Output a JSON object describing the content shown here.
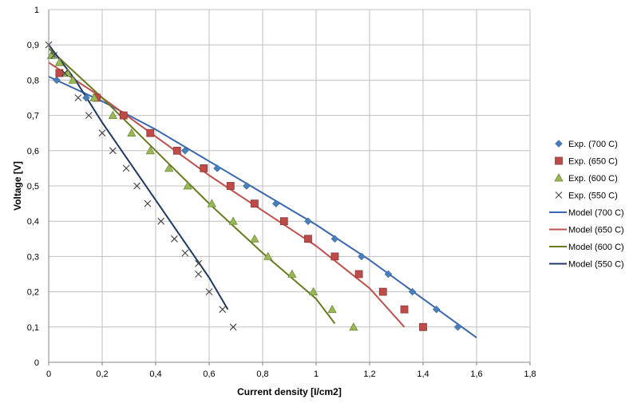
{
  "chart_data": {
    "type": "scatter",
    "title": "",
    "xlabel": "Current density [I/cm2]",
    "ylabel": "Voltage [V]",
    "xlim": [
      0,
      1.8
    ],
    "ylim": [
      0,
      1
    ],
    "x_ticks": [
      "0",
      "0,2",
      "0,4",
      "0,6",
      "0,8",
      "1",
      "1,2",
      "1,4",
      "1,6",
      "1,8"
    ],
    "y_ticks": [
      "0",
      "0,1",
      "0,2",
      "0,3",
      "0,4",
      "0,5",
      "0,6",
      "0,7",
      "0,8",
      "0,9",
      "1"
    ],
    "grid": true,
    "legend_position": "right",
    "series": [
      {
        "name": "Exp. (700 C)",
        "kind": "marker",
        "marker": "diamond",
        "color": "#4a7ebb",
        "points": [
          [
            0.03,
            0.8
          ],
          [
            0.14,
            0.75
          ],
          [
            0.38,
            0.65
          ],
          [
            0.51,
            0.6
          ],
          [
            0.63,
            0.55
          ],
          [
            0.74,
            0.5
          ],
          [
            0.85,
            0.45
          ],
          [
            0.97,
            0.4
          ],
          [
            1.07,
            0.35
          ],
          [
            1.17,
            0.3
          ],
          [
            1.27,
            0.25
          ],
          [
            1.36,
            0.2
          ],
          [
            1.45,
            0.15
          ],
          [
            1.53,
            0.1
          ]
        ]
      },
      {
        "name": "Exp. (650 C)",
        "kind": "marker",
        "marker": "square",
        "color": "#be4b48",
        "points": [
          [
            0.04,
            0.82
          ],
          [
            0.18,
            0.75
          ],
          [
            0.28,
            0.7
          ],
          [
            0.38,
            0.65
          ],
          [
            0.48,
            0.6
          ],
          [
            0.58,
            0.55
          ],
          [
            0.68,
            0.5
          ],
          [
            0.77,
            0.45
          ],
          [
            0.88,
            0.4
          ],
          [
            0.97,
            0.35
          ],
          [
            1.07,
            0.3
          ],
          [
            1.16,
            0.25
          ],
          [
            1.25,
            0.2
          ],
          [
            1.33,
            0.15
          ],
          [
            1.4,
            0.1
          ]
        ]
      },
      {
        "name": "Exp. (600 C)",
        "kind": "marker",
        "marker": "triangle",
        "color": "#98b954",
        "points": [
          [
            0.01,
            0.87
          ],
          [
            0.04,
            0.85
          ],
          [
            0.07,
            0.82
          ],
          [
            0.09,
            0.8
          ],
          [
            0.17,
            0.75
          ],
          [
            0.24,
            0.7
          ],
          [
            0.31,
            0.65
          ],
          [
            0.38,
            0.6
          ],
          [
            0.45,
            0.55
          ],
          [
            0.52,
            0.5
          ],
          [
            0.61,
            0.45
          ],
          [
            0.69,
            0.4
          ],
          [
            0.77,
            0.35
          ],
          [
            0.82,
            0.3
          ],
          [
            0.91,
            0.25
          ],
          [
            0.99,
            0.2
          ],
          [
            1.06,
            0.15
          ],
          [
            1.14,
            0.1
          ]
        ]
      },
      {
        "name": "Exp. (550 C)",
        "kind": "marker",
        "marker": "x",
        "color": "#404040",
        "points": [
          [
            0.0,
            0.9
          ],
          [
            0.02,
            0.87
          ],
          [
            0.06,
            0.82
          ],
          [
            0.11,
            0.75
          ],
          [
            0.15,
            0.7
          ],
          [
            0.2,
            0.65
          ],
          [
            0.24,
            0.6
          ],
          [
            0.29,
            0.55
          ],
          [
            0.33,
            0.5
          ],
          [
            0.37,
            0.45
          ],
          [
            0.42,
            0.4
          ],
          [
            0.47,
            0.35
          ],
          [
            0.51,
            0.31
          ],
          [
            0.56,
            0.28
          ],
          [
            0.56,
            0.25
          ],
          [
            0.6,
            0.2
          ],
          [
            0.65,
            0.15
          ],
          [
            0.69,
            0.1
          ]
        ]
      },
      {
        "name": "Model (700 C)",
        "kind": "line",
        "color": "#3a67b0",
        "points": [
          [
            0,
            0.81
          ],
          [
            0.2,
            0.74
          ],
          [
            0.4,
            0.66
          ],
          [
            0.6,
            0.57
          ],
          [
            0.8,
            0.48
          ],
          [
            1.0,
            0.39
          ],
          [
            1.2,
            0.29
          ],
          [
            1.4,
            0.18
          ],
          [
            1.6,
            0.07
          ]
        ]
      },
      {
        "name": "Model (650 C)",
        "kind": "line",
        "color": "#c0504d",
        "points": [
          [
            0,
            0.85
          ],
          [
            0.2,
            0.75
          ],
          [
            0.4,
            0.64
          ],
          [
            0.6,
            0.53
          ],
          [
            0.8,
            0.43
          ],
          [
            1.0,
            0.33
          ],
          [
            1.1,
            0.27
          ],
          [
            1.2,
            0.21
          ],
          [
            1.33,
            0.1
          ]
        ]
      },
      {
        "name": "Model (600 C)",
        "kind": "line",
        "color": "#6b7a1f",
        "points": [
          [
            0,
            0.89
          ],
          [
            0.2,
            0.75
          ],
          [
            0.4,
            0.6
          ],
          [
            0.6,
            0.45
          ],
          [
            0.8,
            0.31
          ],
          [
            1.0,
            0.18
          ],
          [
            1.07,
            0.11
          ]
        ]
      },
      {
        "name": "Model (550 C)",
        "kind": "line",
        "color": "#1f3864",
        "points": [
          [
            0.0,
            0.9
          ],
          [
            0.1,
            0.8
          ],
          [
            0.2,
            0.68
          ],
          [
            0.3,
            0.57
          ],
          [
            0.4,
            0.46
          ],
          [
            0.5,
            0.35
          ],
          [
            0.6,
            0.24
          ],
          [
            0.67,
            0.15
          ]
        ]
      }
    ]
  }
}
